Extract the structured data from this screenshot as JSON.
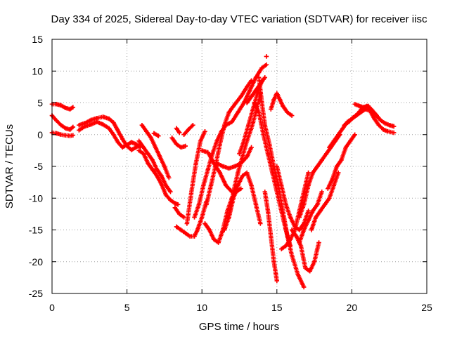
{
  "chart_data": {
    "type": "scatter",
    "title": "Day 334 of 2025, Sidereal Day-to-day VTEC variation (SDTVAR) for receiver iisc",
    "xlabel": "GPS time / hours",
    "ylabel": "SDTVAR / TECUs",
    "xlim": [
      0,
      25
    ],
    "ylim": [
      -25,
      15
    ],
    "xticks": [
      "0",
      "5",
      "10",
      "15",
      "20",
      "25"
    ],
    "yticks": [
      "-25",
      "-20",
      "-15",
      "-10",
      "-5",
      "0",
      "5",
      "10",
      "15"
    ],
    "grid": true,
    "legend": "none",
    "marker": "plus",
    "color": "#ff0000",
    "series": [
      {
        "x": [
          0,
          0.3,
          0.6,
          0.9,
          1.2,
          1.4
        ],
        "y": [
          4.8,
          4.8,
          4.6,
          4.2,
          4.0,
          4.3
        ]
      },
      {
        "x": [
          0,
          0.3,
          0.6,
          0.9,
          1.2,
          1.4
        ],
        "y": [
          3.0,
          2.2,
          1.5,
          1.0,
          0.8,
          1.2
        ]
      },
      {
        "x": [
          0,
          0.3,
          0.6,
          0.9,
          1.2,
          1.4
        ],
        "y": [
          0.3,
          0.2,
          0.0,
          -0.1,
          -0.2,
          -0.1
        ]
      },
      {
        "x": [
          1.8,
          2.2,
          2.6,
          3.0,
          3.4,
          3.8,
          4.1,
          4.4,
          4.7,
          5.0,
          5.3,
          5.6,
          5.9
        ],
        "y": [
          1.5,
          1.8,
          2.3,
          2.6,
          2.8,
          2.5,
          1.9,
          0.6,
          -0.7,
          -1.8,
          -2.4,
          -2.0,
          -1.6
        ]
      },
      {
        "x": [
          1.8,
          2.2,
          2.6,
          3.0,
          3.4,
          3.8,
          4.1,
          4.4,
          4.7,
          5.0,
          5.3,
          5.6,
          5.9
        ],
        "y": [
          0.7,
          1.3,
          1.6,
          2.0,
          1.6,
          1.0,
          0.0,
          -1.2,
          -2.0,
          -1.6,
          -1.2,
          -1.5,
          -2.0
        ]
      },
      {
        "x": [
          5.8,
          6.1,
          6.4,
          6.7,
          7.0,
          7.3,
          7.6,
          7.9,
          8.2,
          8.4
        ],
        "y": [
          -2.5,
          -3.0,
          -4.5,
          -5.5,
          -6.5,
          -7.8,
          -9.5,
          -10.3,
          -10.8,
          -11.0
        ]
      },
      {
        "x": [
          5.8,
          6.1,
          6.4,
          6.7,
          7.0,
          7.3,
          7.6,
          7.9
        ],
        "y": [
          -1.0,
          -2.0,
          -3.0,
          -4.0,
          -5.5,
          -6.5,
          -8.0,
          -9.0
        ]
      },
      {
        "x": [
          6.0,
          6.3,
          6.6,
          6.9,
          7.2,
          7.5,
          7.8
        ],
        "y": [
          1.5,
          0.5,
          -0.5,
          -2.0,
          -3.5,
          -5.0,
          -6.8
        ]
      },
      {
        "x": [
          6.8,
          7.1
        ],
        "y": [
          0.2,
          -0.2
        ]
      },
      {
        "x": [
          8.0,
          8.3,
          8.6,
          8.9
        ],
        "y": [
          -0.5,
          -1.5,
          -2.0,
          -1.8
        ]
      },
      {
        "x": [
          8.3,
          8.5
        ],
        "y": [
          1.0,
          0.3
        ]
      },
      {
        "x": [
          8.2,
          8.5,
          8.8
        ],
        "y": [
          -11.5,
          -12.5,
          -13.0
        ]
      },
      {
        "x": [
          8.8,
          9.1,
          9.4
        ],
        "y": [
          0.0,
          0.8,
          1.5
        ]
      },
      {
        "x": [
          8.3,
          8.6,
          8.9,
          9.2,
          9.5,
          9.7,
          10.0,
          10.3
        ],
        "y": [
          -14.5,
          -15.0,
          -15.5,
          -16.0,
          -16.0,
          -15.0,
          -13.0,
          -10.5
        ]
      },
      {
        "x": [
          9.0,
          9.3,
          9.6,
          9.9,
          10.2
        ],
        "y": [
          -14.0,
          -9.0,
          -4.5,
          -1.0,
          0.5
        ]
      },
      {
        "x": [
          9.5,
          9.8,
          10.1,
          10.4,
          10.7,
          11.0,
          11.3,
          11.6,
          12.0,
          12.4,
          12.8,
          13.2,
          13.6,
          14.0,
          14.3
        ],
        "y": [
          -13.0,
          -11.0,
          -8.0,
          -5.5,
          -3.0,
          -1.0,
          0.5,
          1.5,
          2.0,
          3.5,
          5.0,
          7.0,
          9.0,
          10.5,
          11.0
        ]
      },
      {
        "x": [
          10.0,
          10.4,
          10.8,
          11.2,
          11.6,
          12.0
        ],
        "y": [
          -2.5,
          -2.8,
          -4.5,
          -6.0,
          -8.0,
          -9.0
        ]
      },
      {
        "x": [
          10.3,
          10.6,
          10.9,
          11.2,
          11.5,
          11.8,
          12.2,
          12.6,
          13.0,
          13.3
        ],
        "y": [
          -11.0,
          -8.0,
          -5.0,
          -1.5,
          1.5,
          3.5,
          4.8,
          6.0,
          7.5,
          8.5
        ]
      },
      {
        "x": [
          10.2,
          10.5,
          10.8,
          11.1,
          11.4,
          11.7,
          12.0,
          12.3,
          12.6
        ],
        "y": [
          -14.0,
          -15.0,
          -16.5,
          -17.0,
          -15.0,
          -12.0,
          -10.0,
          -9.0,
          -8.5
        ]
      },
      {
        "x": [
          11.0,
          11.4,
          11.8,
          12.2,
          12.6,
          13.0,
          13.3
        ],
        "y": [
          -4.5,
          -5.0,
          -5.3,
          -5.0,
          -4.5,
          -3.5,
          -2.0
        ]
      },
      {
        "x": [
          11.5,
          11.8,
          12.1,
          12.4,
          12.7,
          13.0,
          13.3,
          13.6,
          13.9
        ],
        "y": [
          -15.0,
          -13.0,
          -9.0,
          -6.0,
          -3.5,
          -1.0,
          1.0,
          3.5,
          6.5
        ]
      },
      {
        "x": [
          11.8,
          12.1,
          12.4,
          12.7,
          13.0,
          13.3,
          13.6,
          13.9
        ],
        "y": [
          -13.0,
          -10.0,
          -8.0,
          -6.5,
          -6.0,
          -8.0,
          -11.0,
          -14.0
        ]
      },
      {
        "x": [
          12.5,
          12.8,
          13.1,
          13.4,
          13.7,
          14.0
        ],
        "y": [
          -3.0,
          -1.0,
          1.5,
          4.0,
          6.5,
          8.5
        ]
      },
      {
        "x": [
          13.0,
          13.3,
          13.6,
          13.9,
          14.2
        ],
        "y": [
          5.0,
          6.0,
          7.0,
          8.0,
          9.0
        ]
      },
      {
        "x": [
          14.3
        ],
        "y": [
          12.3
        ]
      },
      {
        "x": [
          13.5,
          13.8,
          14.1,
          14.4,
          14.7,
          15.0,
          15.3,
          15.6,
          15.9
        ],
        "y": [
          5.0,
          3.5,
          0.0,
          -3.0,
          -6.0,
          -9.0,
          -12.0,
          -15.0,
          -17.5
        ]
      },
      {
        "x": [
          13.8,
          14.0,
          14.2,
          14.5,
          14.8,
          15.1,
          15.4,
          15.7,
          16.0,
          16.4,
          16.8
        ],
        "y": [
          9.0,
          5.0,
          1.5,
          -1.5,
          -5.0,
          -8.0,
          -12.0,
          -16.0,
          -19.0,
          -22.0,
          -24.0
        ]
      },
      {
        "x": [
          14.6,
          14.8,
          15.0,
          15.2,
          15.4,
          15.7,
          16.0
        ],
        "y": [
          4.0,
          5.5,
          6.5,
          5.5,
          4.5,
          3.5,
          3.0
        ]
      },
      {
        "x": [
          14.2,
          14.4,
          14.6,
          14.8,
          15.0
        ],
        "y": [
          -9.0,
          -12.0,
          -16.0,
          -20.0,
          -23.0
        ]
      },
      {
        "x": [
          15.0,
          15.3,
          15.6,
          15.9,
          16.2,
          16.5,
          16.8,
          17.1
        ],
        "y": [
          -5.0,
          -8.0,
          -11.0,
          -13.0,
          -14.5,
          -15.0,
          -14.0,
          -12.0
        ]
      },
      {
        "x": [
          15.3,
          15.6,
          15.9,
          16.2,
          16.5,
          16.8,
          17.1
        ],
        "y": [
          -18.0,
          -17.5,
          -16.5,
          -15.0,
          -12.0,
          -9.0,
          -6.0
        ]
      },
      {
        "x": [
          16.0,
          16.3,
          16.6,
          16.9,
          17.2,
          17.5,
          17.8
        ],
        "y": [
          -15.0,
          -16.0,
          -17.5,
          -21.0,
          -21.5,
          -20.0,
          -17.0
        ]
      },
      {
        "x": [
          16.5,
          16.8,
          17.1,
          17.4,
          17.7,
          18.0
        ],
        "y": [
          -13.0,
          -11.0,
          -8.0,
          -6.0,
          -5.0,
          -4.0
        ]
      },
      {
        "x": [
          16.5,
          16.8,
          17.1,
          17.4,
          17.7,
          18.0
        ],
        "y": [
          -17.0,
          -15.0,
          -13.5,
          -12.0,
          -11.0,
          -9.0
        ]
      },
      {
        "x": [
          17.3,
          17.6,
          17.9,
          18.2,
          18.5,
          18.8,
          19.1
        ],
        "y": [
          -15.0,
          -13.0,
          -12.0,
          -11.0,
          -10.0,
          -8.0,
          -6.0
        ]
      },
      {
        "x": [
          18.0,
          18.3,
          18.6,
          18.9,
          19.2
        ],
        "y": [
          -4.0,
          -3.0,
          -2.0,
          -1.0,
          0.0
        ]
      },
      {
        "x": [
          18.5,
          18.8,
          19.1,
          19.4,
          19.7,
          20.0,
          20.3,
          20.6,
          20.9,
          21.2,
          21.5,
          21.8,
          22.1,
          22.4,
          22.8
        ],
        "y": [
          -2.0,
          -1.0,
          0.0,
          1.0,
          2.0,
          2.5,
          3.0,
          3.5,
          4.0,
          3.8,
          2.5,
          1.5,
          0.8,
          0.5,
          0.3
        ]
      },
      {
        "x": [
          19.5,
          19.8,
          20.1,
          20.4,
          20.7,
          21.0,
          21.3,
          21.6,
          21.9,
          22.2,
          22.5,
          22.8
        ],
        "y": [
          1.5,
          2.0,
          2.7,
          3.3,
          4.2,
          4.5,
          4.0,
          3.2,
          2.3,
          1.8,
          1.5,
          1.3
        ]
      },
      {
        "x": [
          18.4,
          18.7,
          19.0,
          19.3,
          19.6,
          19.9,
          20.2
        ],
        "y": [
          -8.5,
          -7.0,
          -5.0,
          -4.0,
          -2.0,
          -1.0,
          0.0
        ]
      },
      {
        "x": [
          20.2,
          20.5,
          20.8,
          21.1,
          21.4,
          21.7
        ],
        "y": [
          4.8,
          4.5,
          4.3,
          4.5,
          3.5,
          2.8
        ]
      }
    ]
  }
}
